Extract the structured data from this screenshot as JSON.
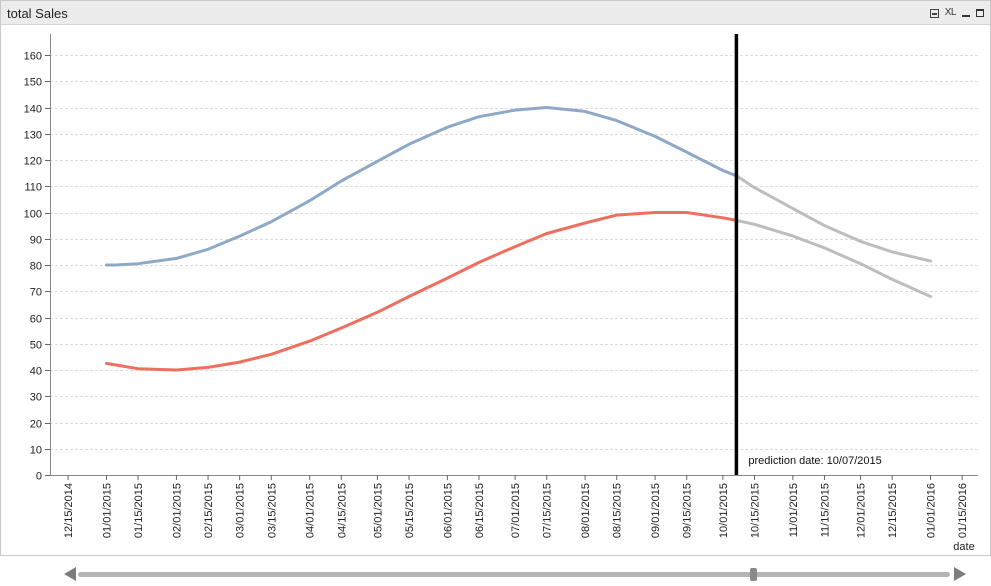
{
  "window": {
    "title": "total Sales",
    "icons": [
      "print-icon",
      "xl-export-icon",
      "minimize-icon",
      "maximize-icon"
    ],
    "xl_label": "XL"
  },
  "scrollbar": {
    "position": 0.775
  },
  "chart_data": {
    "type": "line",
    "xlabel": "date",
    "ylabel": "",
    "ylim": [
      0,
      168
    ],
    "yticks": [
      0,
      10,
      20,
      30,
      40,
      50,
      60,
      70,
      80,
      90,
      100,
      110,
      120,
      130,
      140,
      150,
      160
    ],
    "x_tick_labels": [
      "12/15/2014",
      "01/01/2015",
      "01/15/2015",
      "02/01/2015",
      "02/15/2015",
      "03/01/2015",
      "03/15/2015",
      "04/01/2015",
      "04/15/2015",
      "05/01/2015",
      "05/15/2015",
      "06/01/2015",
      "06/15/2015",
      "07/01/2015",
      "07/15/2015",
      "08/01/2015",
      "08/15/2015",
      "09/01/2015",
      "09/15/2015",
      "10/01/2015",
      "10/15/2015",
      "11/01/2015",
      "11/15/2015",
      "12/01/2015",
      "12/15/2015",
      "01/01/2016",
      "01/15/2016"
    ],
    "xlim": [
      "2014-12-07",
      "2016-01-22"
    ],
    "grid": "horizontal",
    "prediction": {
      "date": "2015-10-07",
      "label": "prediction date: 10/07/2015"
    },
    "colors": {
      "series_upper": "#8ea9c8",
      "series_lower": "#ef6f5e",
      "forecast": "#bdbdbd",
      "prediction_line": "#000000",
      "grid": "#dcdcdc"
    },
    "series": [
      {
        "x": [
          "2015-01-01",
          "2015-01-05",
          "2015-01-15",
          "2015-02-01",
          "2015-02-15",
          "2015-03-01",
          "2015-03-15",
          "2015-04-01",
          "2015-04-15",
          "2015-05-01",
          "2015-05-15",
          "2015-06-01",
          "2015-06-15",
          "2015-07-01",
          "2015-07-15",
          "2015-08-01",
          "2015-08-15",
          "2015-09-01",
          "2015-09-15",
          "2015-10-01",
          "2015-10-07"
        ],
        "values": [
          80,
          80,
          80.5,
          82.5,
          86,
          91,
          96.5,
          104.5,
          112,
          119.5,
          126,
          132.5,
          136.5,
          139,
          140,
          138.5,
          135,
          129,
          123,
          116,
          114
        ]
      },
      {
        "x": [
          "2015-01-01",
          "2015-01-15",
          "2015-02-01",
          "2015-02-15",
          "2015-03-01",
          "2015-03-15",
          "2015-04-01",
          "2015-04-15",
          "2015-05-01",
          "2015-05-15",
          "2015-06-01",
          "2015-06-15",
          "2015-07-01",
          "2015-07-15",
          "2015-08-01",
          "2015-08-15",
          "2015-09-01",
          "2015-09-15",
          "2015-10-01",
          "2015-10-07"
        ],
        "values": [
          42.5,
          40.5,
          40,
          41,
          43,
          46,
          51,
          56,
          62,
          68,
          75,
          81,
          87,
          92,
          96,
          99,
          100,
          100,
          98,
          97
        ]
      },
      {
        "x": [
          "2015-10-07",
          "2015-10-15",
          "2015-11-01",
          "2015-11-15",
          "2015-12-01",
          "2015-12-15",
          "2016-01-01"
        ],
        "values": [
          114,
          109.5,
          101.5,
          95,
          89,
          85,
          81.5
        ]
      },
      {
        "x": [
          "2015-10-07",
          "2015-10-15",
          "2015-11-01",
          "2015-11-15",
          "2015-12-01",
          "2015-12-15",
          "2016-01-01"
        ],
        "values": [
          97,
          95.5,
          91,
          86.5,
          80.5,
          74.5,
          68
        ]
      }
    ]
  }
}
